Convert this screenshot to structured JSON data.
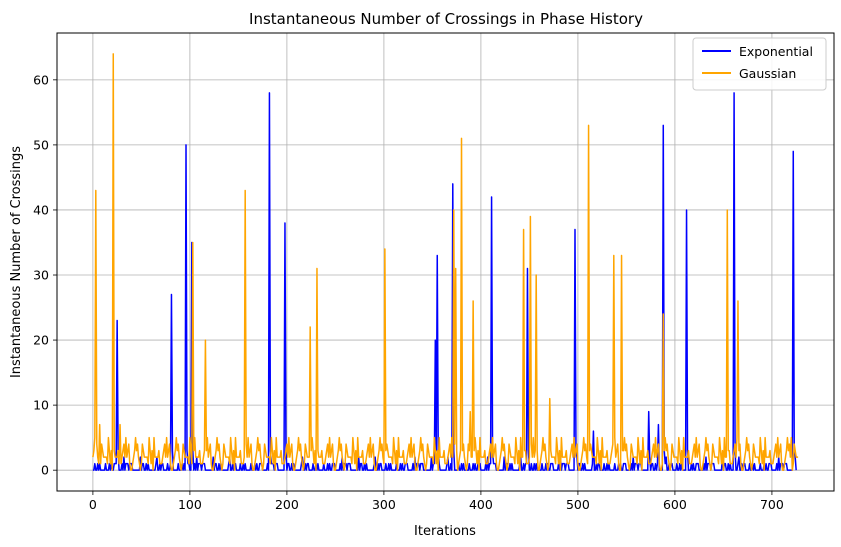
{
  "chart_data": {
    "type": "line",
    "title": "Instantaneous Number of Crossings in Phase History",
    "xlabel": "Iterations",
    "ylabel": "Instantaneous Number of Crossings",
    "xlim": [
      -37,
      764
    ],
    "ylim": [
      -3.2,
      67.2
    ],
    "xticks": [
      0,
      100,
      200,
      300,
      400,
      500,
      600,
      700
    ],
    "yticks": [
      0,
      10,
      20,
      30,
      40,
      50,
      60
    ],
    "grid": true,
    "legend_position": "upper right",
    "series": [
      {
        "name": "Exponential",
        "color": "#0000ff",
        "baseline": [
          0,
          1,
          0,
          1,
          0,
          0,
          1,
          0,
          0,
          2,
          0,
          1,
          0,
          0,
          1,
          0,
          0,
          0,
          1,
          0,
          1,
          0,
          0,
          0,
          1
        ],
        "spikes": [
          [
            25,
            23
          ],
          [
            81,
            27
          ],
          [
            96,
            50
          ],
          [
            102,
            35
          ],
          [
            182,
            58
          ],
          [
            198,
            38
          ],
          [
            353,
            20
          ],
          [
            355,
            33
          ],
          [
            371,
            44
          ],
          [
            411,
            42
          ],
          [
            448,
            31
          ],
          [
            497,
            37
          ],
          [
            516,
            6
          ],
          [
            573,
            9
          ],
          [
            583,
            7
          ],
          [
            588,
            53
          ],
          [
            612,
            40
          ],
          [
            661,
            58
          ],
          [
            722,
            49
          ]
        ],
        "x_max": 725
      },
      {
        "name": "Gaussian",
        "color": "#ffa500",
        "baseline": [
          2,
          4,
          1,
          3,
          2,
          5,
          0,
          3,
          2,
          1,
          4,
          2,
          3,
          0,
          5,
          2,
          1,
          3,
          2,
          4,
          1,
          2,
          3,
          0,
          2,
          5,
          1,
          3
        ],
        "spikes": [
          [
            3,
            43
          ],
          [
            7,
            7
          ],
          [
            21,
            64
          ],
          [
            28,
            7
          ],
          [
            103,
            35
          ],
          [
            116,
            20
          ],
          [
            157,
            43
          ],
          [
            224,
            22
          ],
          [
            231,
            31
          ],
          [
            301,
            34
          ],
          [
            372,
            40
          ],
          [
            374,
            31
          ],
          [
            380,
            51
          ],
          [
            389,
            9
          ],
          [
            392,
            26
          ],
          [
            444,
            37
          ],
          [
            451,
            39
          ],
          [
            457,
            30
          ],
          [
            471,
            11
          ],
          [
            511,
            53
          ],
          [
            537,
            33
          ],
          [
            545,
            33
          ],
          [
            588,
            24
          ],
          [
            654,
            40
          ],
          [
            665,
            26
          ],
          [
            720,
            5
          ]
        ],
        "x_max": 727
      }
    ]
  }
}
